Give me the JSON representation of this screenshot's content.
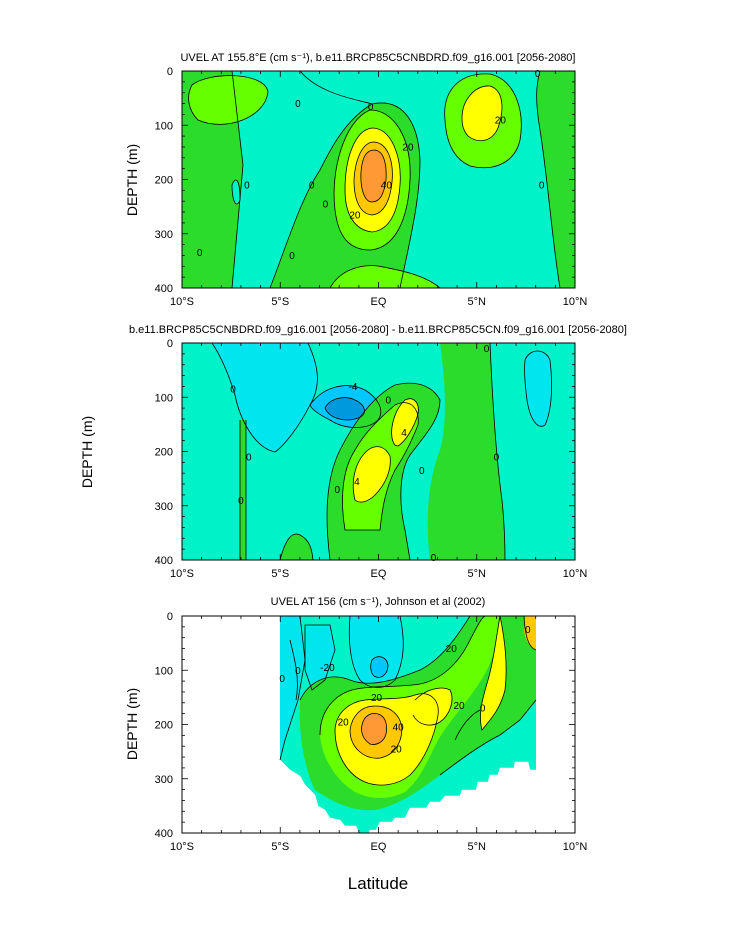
{
  "chart_data": [
    {
      "type": "contour",
      "title": "UVEL AT 155.8°E (cm s⁻¹), b.e11.BRCP85C5CNBDRD.f09_g16.001 [2056-2080]",
      "ylabel": "DEPTH (m)",
      "xlabel": "",
      "x_ticks": [
        "10°S",
        "5°S",
        "EQ",
        "5°N",
        "10°N"
      ],
      "y_ticks": [
        "0",
        "100",
        "200",
        "300",
        "400"
      ],
      "xlim": [
        -10,
        10
      ],
      "ylim": [
        0,
        400
      ],
      "contour_labels": [
        {
          "text": "0",
          "lat": -9.1,
          "depth": 335
        },
        {
          "text": "0",
          "lat": -4.4,
          "depth": 340
        },
        {
          "text": "0",
          "lat": -6.7,
          "depth": 210
        },
        {
          "text": "0",
          "lat": -4.1,
          "depth": 60
        },
        {
          "text": "0",
          "lat": -3.4,
          "depth": 210
        },
        {
          "text": "0",
          "lat": -2.7,
          "depth": 245
        },
        {
          "text": "0",
          "lat": -0.4,
          "depth": 65
        },
        {
          "text": "0",
          "lat": 8.1,
          "depth": 5
        },
        {
          "text": "0",
          "lat": 8.3,
          "depth": 210
        },
        {
          "text": "20",
          "lat": 1.5,
          "depth": 140
        },
        {
          "text": "40",
          "lat": 0.4,
          "depth": 210
        },
        {
          "text": "20",
          "lat": -1.2,
          "depth": 265
        },
        {
          "text": "20",
          "lat": 6.2,
          "depth": 90
        }
      ]
    },
    {
      "type": "contour",
      "title": "b.e11.BRCP85C5CNBDRD.f09_g16.001 [2056-2080] - b.e11.BRCP85C5CN.f09_g16.001 [2056-2080]",
      "ylabel": "DEPTH (m)",
      "xlabel": "",
      "x_ticks": [
        "10°S",
        "5°S",
        "EQ",
        "5°N",
        "10°N"
      ],
      "y_ticks": [
        "0",
        "100",
        "200",
        "300",
        "400"
      ],
      "xlim": [
        -10,
        10
      ],
      "ylim": [
        0,
        400
      ],
      "contour_labels": [
        {
          "text": "0",
          "lat": -7.4,
          "depth": 85
        },
        {
          "text": "0",
          "lat": -6.6,
          "depth": 210
        },
        {
          "text": "0",
          "lat": -7.0,
          "depth": 290
        },
        {
          "text": "-4",
          "lat": -1.3,
          "depth": 80
        },
        {
          "text": "0",
          "lat": 0.5,
          "depth": 105
        },
        {
          "text": "4",
          "lat": 1.3,
          "depth": 165
        },
        {
          "text": "0",
          "lat": -2.1,
          "depth": 270
        },
        {
          "text": "4",
          "lat": -1.1,
          "depth": 255
        },
        {
          "text": "0",
          "lat": 2.2,
          "depth": 235
        },
        {
          "text": "0",
          "lat": 2.8,
          "depth": 395
        },
        {
          "text": "0",
          "lat": 5.5,
          "depth": 10
        },
        {
          "text": "0",
          "lat": 6.0,
          "depth": 210
        }
      ]
    },
    {
      "type": "contour",
      "title": "UVEL AT 156 (cm s⁻¹), Johnson et al (2002)",
      "ylabel": "DEPTH (m)",
      "xlabel": "Latitude",
      "x_ticks": [
        "10°S",
        "5°S",
        "EQ",
        "5°N",
        "10°N"
      ],
      "y_ticks": [
        "0",
        "100",
        "200",
        "300",
        "400"
      ],
      "xlim": [
        -10,
        10
      ],
      "ylim": [
        0,
        400
      ],
      "data_lat_range": [
        -5,
        8
      ],
      "contour_labels": [
        {
          "text": "-20",
          "lat": -2.6,
          "depth": 95
        },
        {
          "text": "20",
          "lat": 3.7,
          "depth": 60
        },
        {
          "text": "20",
          "lat": -0.1,
          "depth": 150
        },
        {
          "text": "40",
          "lat": 1.0,
          "depth": 205
        },
        {
          "text": "20",
          "lat": -1.8,
          "depth": 195
        },
        {
          "text": "20",
          "lat": 0.9,
          "depth": 245
        },
        {
          "text": "20",
          "lat": 4.1,
          "depth": 165
        },
        {
          "text": "0",
          "lat": 5.3,
          "depth": 170
        },
        {
          "text": "0",
          "lat": 7.6,
          "depth": 25
        },
        {
          "text": "0",
          "lat": -4.9,
          "depth": 115
        },
        {
          "text": "0",
          "lat": -4.1,
          "depth": 100
        }
      ]
    }
  ],
  "palette": {
    "cyan": "#00e5ee",
    "teal": "#00f3c8",
    "green": "#2bdc2b",
    "lime": "#66ff00",
    "yellow": "#ffff00",
    "gold": "#ffc800",
    "orange": "#ff9933",
    "sky": "#00c8ff",
    "blue": "#0099dd"
  }
}
